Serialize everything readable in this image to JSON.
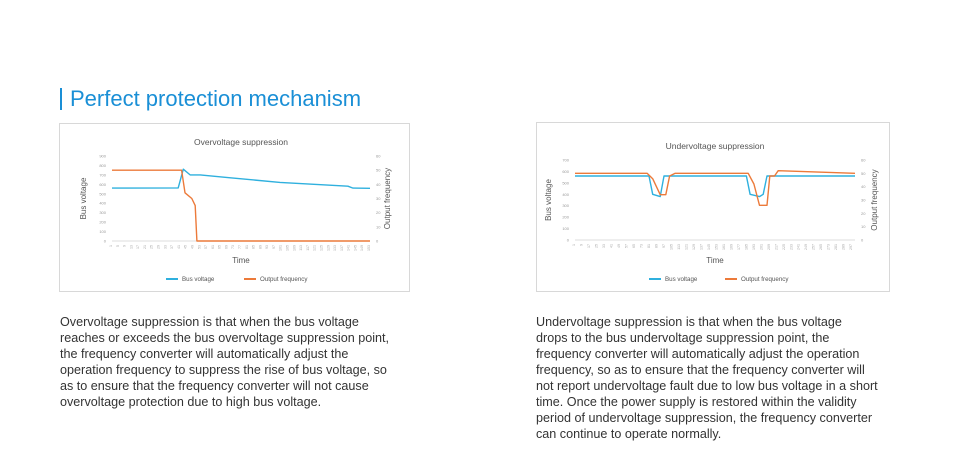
{
  "section": {
    "title": "Perfect protection mechanism"
  },
  "colors": {
    "accent": "#1a8fd6",
    "bus_voltage": "#2fb0de",
    "output_frequency": "#ec7a3a"
  },
  "chart_data": [
    {
      "type": "line",
      "title": "Overvoltage suppression",
      "xlabel": "Time",
      "ylabel": "Bus voltage",
      "y2label": "Output frequency",
      "ylim": [
        0,
        900
      ],
      "y2lim": [
        0,
        60
      ],
      "yticks": [
        "0",
        "100",
        "200",
        "300",
        "400",
        "500",
        "600",
        "700",
        "800",
        "900"
      ],
      "y2ticks": [
        "0",
        "10",
        "20",
        "30",
        "40",
        "50",
        "60"
      ],
      "xticks": [
        "1",
        "5",
        "9",
        "13",
        "17",
        "21",
        "25",
        "29",
        "33",
        "37",
        "41",
        "45",
        "49",
        "53",
        "57",
        "61",
        "65",
        "69",
        "73",
        "77",
        "81",
        "85",
        "89",
        "93",
        "97",
        "101",
        "105",
        "109",
        "113",
        "117",
        "121",
        "125",
        "129",
        "133",
        "137",
        "141",
        "145",
        "149",
        "153"
      ],
      "legend": "bottom",
      "grid": false,
      "series": [
        {
          "name": "Bus voltage",
          "axis": "left",
          "x": [
            1,
            40,
            43,
            47,
            53,
            70,
            100,
            140,
            143,
            153
          ],
          "y": [
            560,
            562,
            760,
            700,
            700,
            670,
            620,
            580,
            560,
            558
          ]
        },
        {
          "name": "Output frequency",
          "axis": "right",
          "x": [
            1,
            42,
            44,
            48,
            50,
            51,
            153
          ],
          "y": [
            50,
            50,
            34,
            30,
            25,
            0,
            0
          ]
        }
      ]
    },
    {
      "type": "line",
      "title": "Undervoltage suppression",
      "xlabel": "Time",
      "ylabel": "Bus voltage",
      "y2label": "Output frequency",
      "ylim": [
        0,
        700
      ],
      "y2lim": [
        0,
        60
      ],
      "yticks": [
        "0",
        "100",
        "200",
        "300",
        "400",
        "500",
        "600",
        "700"
      ],
      "y2ticks": [
        "0",
        "10",
        "20",
        "30",
        "40",
        "50",
        "60"
      ],
      "xticks": [
        "1",
        "9",
        "17",
        "25",
        "33",
        "41",
        "49",
        "57",
        "65",
        "73",
        "81",
        "89",
        "97",
        "105",
        "113",
        "121",
        "129",
        "137",
        "145",
        "153",
        "161",
        "169",
        "177",
        "185",
        "193",
        "201",
        "209",
        "217",
        "225",
        "233",
        "241",
        "249",
        "257",
        "265",
        "273",
        "281",
        "289",
        "297"
      ],
      "legend": "bottom",
      "grid": false,
      "series": [
        {
          "name": "Bus voltage",
          "axis": "left",
          "x": [
            1,
            80,
            84,
            92,
            96,
            100,
            112,
            184,
            188,
            198,
            202,
            206,
            300
          ],
          "y": [
            560,
            560,
            400,
            380,
            560,
            560,
            560,
            560,
            400,
            380,
            400,
            560,
            560
          ]
        },
        {
          "name": "Output frequency",
          "axis": "right",
          "x": [
            1,
            78,
            84,
            92,
            98,
            102,
            108,
            186,
            192,
            198,
            206,
            209,
            214,
            218,
            300
          ],
          "y": [
            50,
            50,
            46,
            34,
            34,
            48,
            50,
            50,
            42,
            26,
            26,
            48,
            48,
            52,
            50
          ]
        }
      ]
    }
  ],
  "descriptions": {
    "over": [
      "Overvoltage suppression is that when the bus voltage",
      "reaches or exceeds the bus overvoltage suppression point,",
      "the frequency converter will automatically adjust the",
      "operation frequency to suppress the rise of bus voltage, so",
      "as to ensure that the frequency converter will not cause",
      "overvoltage protection due to high bus voltage."
    ],
    "under": [
      "Undervoltage suppression is that when the bus voltage",
      "drops to the bus undervoltage suppression point, the",
      "frequency converter will automatically adjust the operation",
      "frequency, so as to ensure that the frequency converter will",
      "not report undervoltage fault due to low bus voltage in a short",
      "time. Once the power supply is restored within the validity",
      "period of undervoltage suppression, the frequency converter",
      "can continue to operate normally."
    ]
  }
}
